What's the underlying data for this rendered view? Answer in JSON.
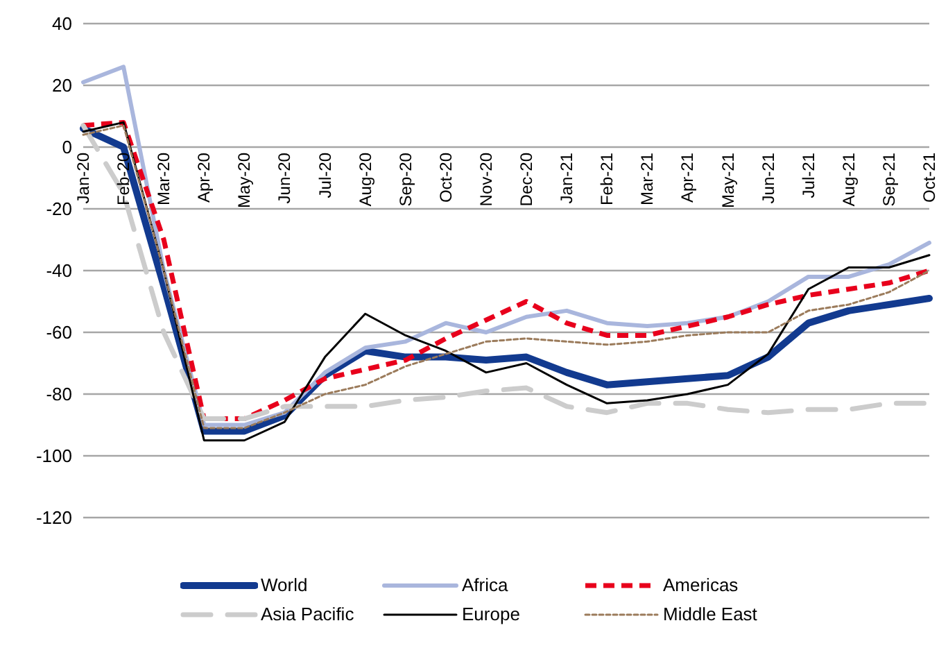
{
  "chart_data": {
    "type": "line",
    "categories": [
      "Jan-20",
      "Feb-20",
      "Mar-20",
      "Apr-20",
      "May-20",
      "Jun-20",
      "Jul-20",
      "Aug-20",
      "Sep-20",
      "Oct-20",
      "Nov-20",
      "Dec-20",
      "Jan-21",
      "Feb-21",
      "Mar-21",
      "Apr-21",
      "May-21",
      "Jun-21",
      "Jul-21",
      "Aug-21",
      "Sep-21",
      "Oct-21"
    ],
    "ylim": [
      -120,
      40
    ],
    "yticks": [
      -120,
      -100,
      -80,
      -60,
      -40,
      -20,
      0,
      20,
      40
    ],
    "grid": "y",
    "legend": "bottom",
    "marker": "none",
    "series": [
      {
        "name": "World",
        "color": "#123a8f",
        "line_style": "solid",
        "values": [
          6,
          0,
          -45,
          -92,
          -92,
          -87,
          -74,
          -66,
          -68,
          -68,
          -69,
          -68,
          -73,
          -77,
          -76,
          -75,
          -74,
          -68,
          -57,
          -53,
          -51,
          -49
        ]
      },
      {
        "name": "Africa",
        "color": "#a9b6dd",
        "line_style": "solid",
        "values": [
          21,
          26,
          -40,
          -90,
          -90,
          -86,
          -73,
          -65,
          -63,
          -57,
          -60,
          -55,
          -53,
          -57,
          -58,
          -57,
          -55,
          -50,
          -42,
          -42,
          -38,
          -31
        ]
      },
      {
        "name": "Americas",
        "color": "#e8001c",
        "line_style": "dashed",
        "values": [
          7,
          8,
          -30,
          -88,
          -88,
          -82,
          -75,
          -72,
          -69,
          -62,
          -56,
          -50,
          -57,
          -61,
          -61,
          -58,
          -55,
          -51,
          -48,
          -46,
          -44,
          -40
        ]
      },
      {
        "name": "Asia Pacific",
        "color": "#cccccc",
        "line_style": "dashed",
        "values": [
          7,
          -15,
          -60,
          -88,
          -88,
          -84,
          -84,
          -84,
          -82,
          -81,
          -79,
          -78,
          -84,
          -86,
          -83,
          -83,
          -85,
          -86,
          -85,
          -85,
          -83,
          -83
        ]
      },
      {
        "name": "Europe",
        "color": "#000000",
        "line_style": "solid",
        "values": [
          5,
          8,
          -40,
          -95,
          -95,
          -89,
          -68,
          -54,
          -61,
          -66,
          -73,
          -70,
          -77,
          -83,
          -82,
          -80,
          -77,
          -67,
          -46,
          -39,
          -39,
          -35
        ]
      },
      {
        "name": "Middle East",
        "color": "#9b7b5b",
        "line_style": "dotted",
        "values": [
          4,
          7,
          -40,
          -91,
          -91,
          -86,
          -80,
          -77,
          -71,
          -67,
          -63,
          -62,
          -63,
          -64,
          -63,
          -61,
          -60,
          -60,
          -53,
          -51,
          -47,
          -40
        ]
      }
    ]
  }
}
